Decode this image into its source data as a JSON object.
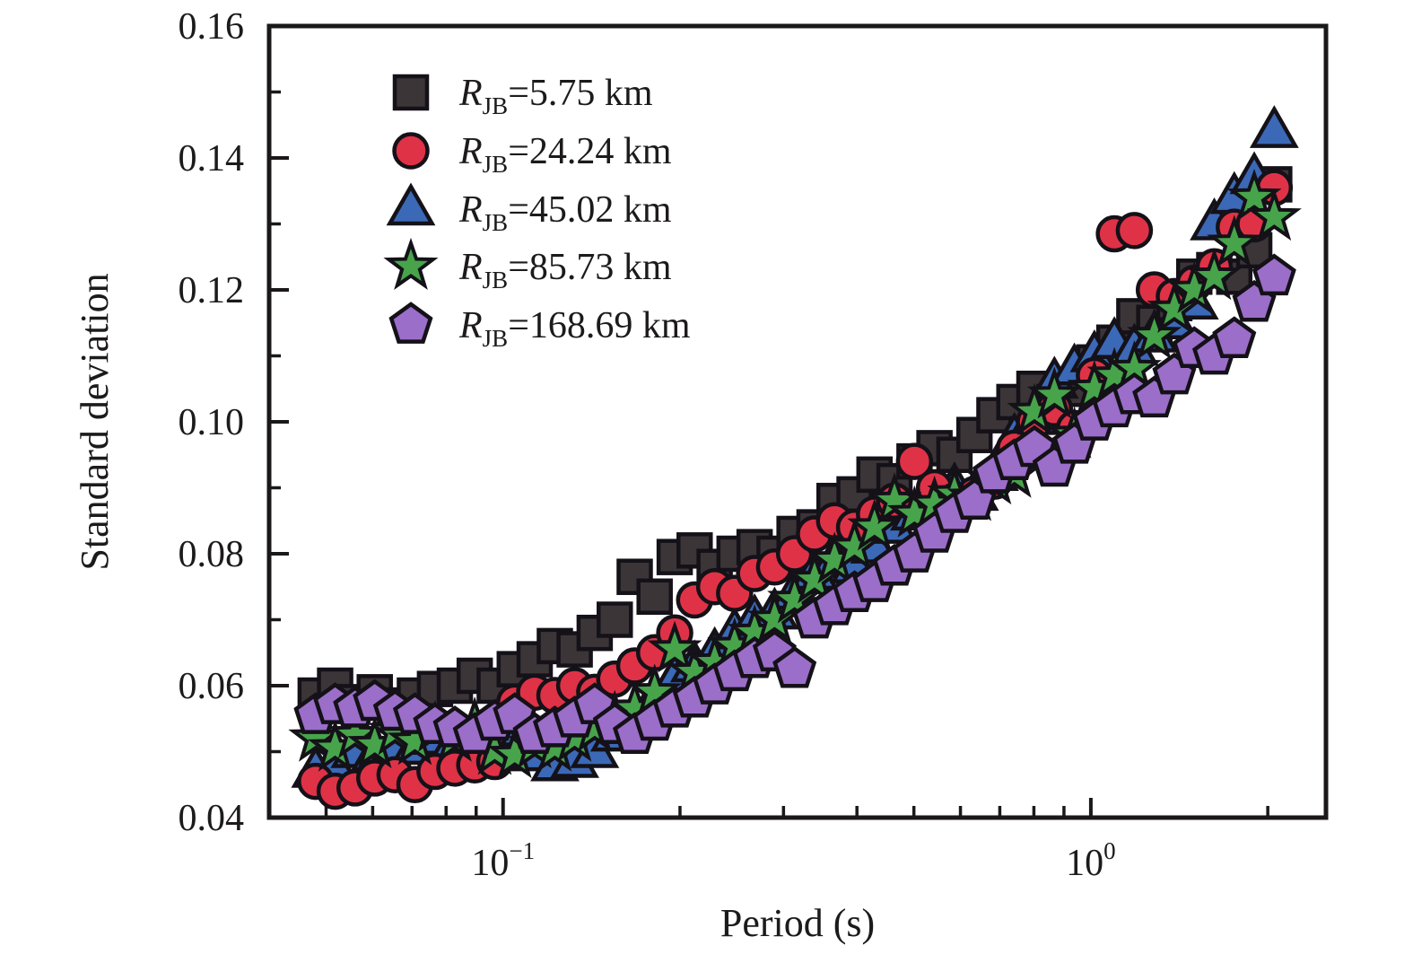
{
  "figure": {
    "background": "#ffffff"
  },
  "chart_data": {
    "type": "scatter",
    "title": "",
    "xlabel": "Period (s)",
    "ylabel": "Standard deviation",
    "x_scale": "log",
    "xlim": [
      0.04,
      2.512
    ],
    "ylim": [
      0.04,
      0.16
    ],
    "grid": false,
    "legend_position": "upper-left-inside",
    "x_major_ticks": [
      {
        "value": 0.1,
        "mantissa": "10",
        "exponent": "−1"
      },
      {
        "value": 1,
        "mantissa": "10",
        "exponent": "0"
      }
    ],
    "x_minor_ticks": [
      0.05,
      0.06,
      0.07,
      0.08,
      0.09,
      0.2,
      0.3,
      0.4,
      0.5,
      0.6,
      0.7,
      0.8,
      0.9,
      2
    ],
    "y_major_ticks": [
      {
        "value": 0.04,
        "label": "0.04"
      },
      {
        "value": 0.06,
        "label": "0.06"
      },
      {
        "value": 0.08,
        "label": "0.08"
      },
      {
        "value": 0.1,
        "label": "0.10"
      },
      {
        "value": 0.12,
        "label": "0.12"
      },
      {
        "value": 0.14,
        "label": "0.14"
      },
      {
        "value": 0.16,
        "label": "0.16"
      }
    ],
    "y_minor_ticks": [
      0.05,
      0.07,
      0.09,
      0.11,
      0.13,
      0.15
    ],
    "marker_outline": "#141118",
    "legend": {
      "r_symbol": "R",
      "subscript": "JB",
      "unit": "km"
    },
    "periods": [
      0.048,
      0.0518,
      0.056,
      0.0605,
      0.0655,
      0.0708,
      0.0766,
      0.0828,
      0.0895,
      0.0968,
      0.1047,
      0.1132,
      0.1225,
      0.1324,
      0.1432,
      0.1549,
      0.1675,
      0.1811,
      0.1959,
      0.2118,
      0.2291,
      0.2477,
      0.2679,
      0.2897,
      0.3133,
      0.3388,
      0.3664,
      0.3963,
      0.4285,
      0.4634,
      0.5012,
      0.542,
      0.5861,
      0.6339,
      0.6855,
      0.7413,
      0.8017,
      0.867,
      0.9376,
      1.014,
      1.0965,
      1.1858,
      1.2823,
      1.3868,
      1.4997,
      1.6218,
      1.7539,
      1.8966,
      2.0512
    ],
    "series": [
      {
        "name": "RJB=5.75 km",
        "rjb": "5.75",
        "label_rest": "=5.75 km",
        "marker": "square",
        "color": "#3b3537",
        "values": [
          0.0585,
          0.06,
          0.0575,
          0.059,
          0.057,
          0.0585,
          0.0595,
          0.06,
          0.0615,
          0.06,
          0.0625,
          0.064,
          0.066,
          0.0655,
          0.068,
          0.07,
          0.0765,
          0.0735,
          0.0795,
          0.0805,
          0.078,
          0.08,
          0.081,
          0.08,
          0.083,
          0.084,
          0.088,
          0.089,
          0.092,
          0.091,
          0.094,
          0.096,
          0.095,
          0.098,
          0.101,
          0.103,
          0.105,
          0.103,
          0.105,
          0.109,
          0.112,
          0.116,
          0.115,
          0.118,
          0.122,
          0.123,
          0.122,
          0.126,
          0.136
        ]
      },
      {
        "name": "RJB=24.24 km",
        "rjb": "24.24",
        "label_rest": "=24.24 km",
        "marker": "circle",
        "color": "#e03247",
        "values": [
          0.0455,
          0.044,
          0.0445,
          0.046,
          0.0465,
          0.045,
          0.047,
          0.0475,
          0.048,
          0.0485,
          0.0575,
          0.059,
          0.0585,
          0.06,
          0.059,
          0.061,
          0.063,
          0.065,
          0.068,
          0.073,
          0.075,
          0.074,
          0.077,
          0.078,
          0.08,
          0.083,
          0.085,
          0.084,
          0.086,
          0.088,
          0.094,
          0.09,
          0.088,
          0.089,
          0.091,
          0.096,
          0.1,
          0.102,
          0.099,
          0.107,
          0.1285,
          0.129,
          0.12,
          0.119,
          0.121,
          0.1235,
          0.1295,
          0.13,
          0.1355
        ]
      },
      {
        "name": "RJB=45.02 km",
        "rjb": "45.02",
        "label_rest": "=45.02 km",
        "marker": "triangle",
        "color": "#3b69b7",
        "values": [
          0.047,
          0.0475,
          0.05,
          0.0495,
          0.051,
          0.0505,
          0.052,
          0.0515,
          0.053,
          0.0525,
          0.051,
          0.0495,
          0.048,
          0.0485,
          0.05,
          0.0525,
          0.055,
          0.058,
          0.061,
          0.063,
          0.065,
          0.068,
          0.07,
          0.071,
          0.074,
          0.077,
          0.079,
          0.078,
          0.081,
          0.084,
          0.086,
          0.088,
          0.09,
          0.089,
          0.092,
          0.0975,
          0.1005,
          0.106,
          0.108,
          0.11,
          0.112,
          0.111,
          0.113,
          0.115,
          0.118,
          0.13,
          0.134,
          0.137,
          0.144
        ]
      },
      {
        "name": "RJB=85.73 km",
        "rjb": "85.73",
        "label_rest": "=85.73 km",
        "marker": "star",
        "color": "#47a44b",
        "values": [
          0.052,
          0.0505,
          0.0525,
          0.051,
          0.053,
          0.0515,
          0.0535,
          0.052,
          0.054,
          0.05,
          0.0495,
          0.051,
          0.0505,
          0.052,
          0.0535,
          0.055,
          0.0565,
          0.059,
          0.0655,
          0.062,
          0.0635,
          0.066,
          0.068,
          0.07,
          0.073,
          0.076,
          0.079,
          0.081,
          0.084,
          0.088,
          0.086,
          0.0875,
          0.089,
          0.0885,
          0.091,
          0.092,
          0.1015,
          0.104,
          0.098,
          0.105,
          0.107,
          0.108,
          0.113,
          0.117,
          0.12,
          0.122,
          0.127,
          0.134,
          0.131
        ]
      },
      {
        "name": "RJB=168.69 km",
        "rjb": "168.69",
        "label_rest": "=168.69 km",
        "marker": "pentagon",
        "color": "#9b6ec9",
        "values": [
          0.0555,
          0.057,
          0.0565,
          0.0575,
          0.056,
          0.0555,
          0.054,
          0.0535,
          0.0525,
          0.0545,
          0.0555,
          0.0525,
          0.0535,
          0.055,
          0.057,
          0.054,
          0.0525,
          0.0545,
          0.0565,
          0.058,
          0.06,
          0.062,
          0.064,
          0.065,
          0.0625,
          0.07,
          0.072,
          0.074,
          0.0755,
          0.078,
          0.08,
          0.083,
          0.086,
          0.088,
          0.092,
          0.094,
          0.096,
          0.093,
          0.0965,
          0.1,
          0.102,
          0.104,
          0.1035,
          0.107,
          0.111,
          0.11,
          0.1125,
          0.118,
          0.122
        ]
      }
    ]
  }
}
